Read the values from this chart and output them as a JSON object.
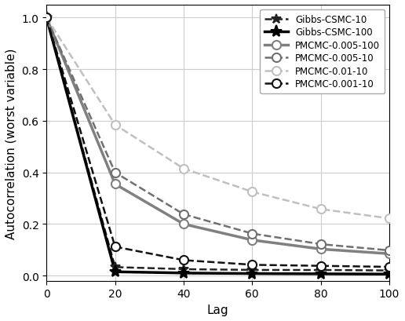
{
  "title": "",
  "xlabel": "Lag",
  "ylabel": "Autocorrelation (worst variable)",
  "xlim": [
    0,
    100
  ],
  "ylim": [
    -0.02,
    1.05
  ],
  "xticks": [
    0,
    20,
    40,
    60,
    80,
    100
  ],
  "yticks": [
    0.0,
    0.2,
    0.4,
    0.6,
    0.8,
    1.0
  ],
  "series": [
    {
      "label": "Gibbs-CSMC-10",
      "color": "#222222",
      "linestyle": "--",
      "linewidth": 1.8,
      "marker": "*",
      "markersize": 9,
      "marker_every": [
        0,
        20,
        40,
        60,
        80,
        100
      ],
      "markerfacecolor": "#222222",
      "x": [
        0,
        20,
        40,
        60,
        80,
        100
      ],
      "y": [
        1.0,
        0.033,
        0.025,
        0.022,
        0.022,
        0.02
      ]
    },
    {
      "label": "Gibbs-CSMC-100",
      "color": "#000000",
      "linestyle": "-",
      "linewidth": 2.5,
      "marker": "*",
      "markersize": 11,
      "marker_every": [
        0,
        20,
        40,
        60,
        80,
        100
      ],
      "markerfacecolor": "#000000",
      "x": [
        0,
        20,
        40,
        60,
        80,
        100
      ],
      "y": [
        1.0,
        0.015,
        0.01,
        0.008,
        0.007,
        0.006
      ]
    },
    {
      "label": "PMCMC-0.005-100",
      "color": "#808080",
      "linestyle": "-",
      "linewidth": 2.5,
      "marker": "o",
      "markersize": 8,
      "marker_every": [
        0,
        20,
        40,
        60,
        80,
        100
      ],
      "markerfacecolor": "white",
      "x": [
        0,
        20,
        40,
        60,
        80,
        100
      ],
      "y": [
        1.0,
        0.355,
        0.2,
        0.138,
        0.103,
        0.085
      ]
    },
    {
      "label": "PMCMC-0.005-10",
      "color": "#707070",
      "linestyle": "--",
      "linewidth": 1.8,
      "marker": "o",
      "markersize": 8,
      "marker_every": [
        0,
        20,
        40,
        60,
        80,
        100
      ],
      "markerfacecolor": "white",
      "x": [
        0,
        20,
        40,
        60,
        80,
        100
      ],
      "y": [
        1.0,
        0.4,
        0.238,
        0.163,
        0.122,
        0.098
      ]
    },
    {
      "label": "PMCMC-0.01-10",
      "color": "#c0c0c0",
      "linestyle": "--",
      "linewidth": 1.8,
      "marker": "o",
      "markersize": 8,
      "marker_every": [
        0,
        20,
        40,
        60,
        80,
        100
      ],
      "markerfacecolor": "white",
      "x": [
        0,
        20,
        40,
        60,
        80,
        100
      ],
      "y": [
        1.0,
        0.585,
        0.415,
        0.325,
        0.258,
        0.222
      ]
    },
    {
      "label": "PMCMC-0.001-10",
      "color": "#111111",
      "linestyle": "--",
      "linewidth": 1.8,
      "marker": "o",
      "markersize": 8,
      "marker_every": [
        0,
        20,
        40,
        60,
        80,
        100
      ],
      "markerfacecolor": "white",
      "x": [
        0,
        20,
        40,
        60,
        80,
        100
      ],
      "y": [
        1.0,
        0.112,
        0.06,
        0.042,
        0.038,
        0.034
      ]
    }
  ],
  "legend_loc": "upper right",
  "grid": true,
  "background_color": "#ffffff"
}
